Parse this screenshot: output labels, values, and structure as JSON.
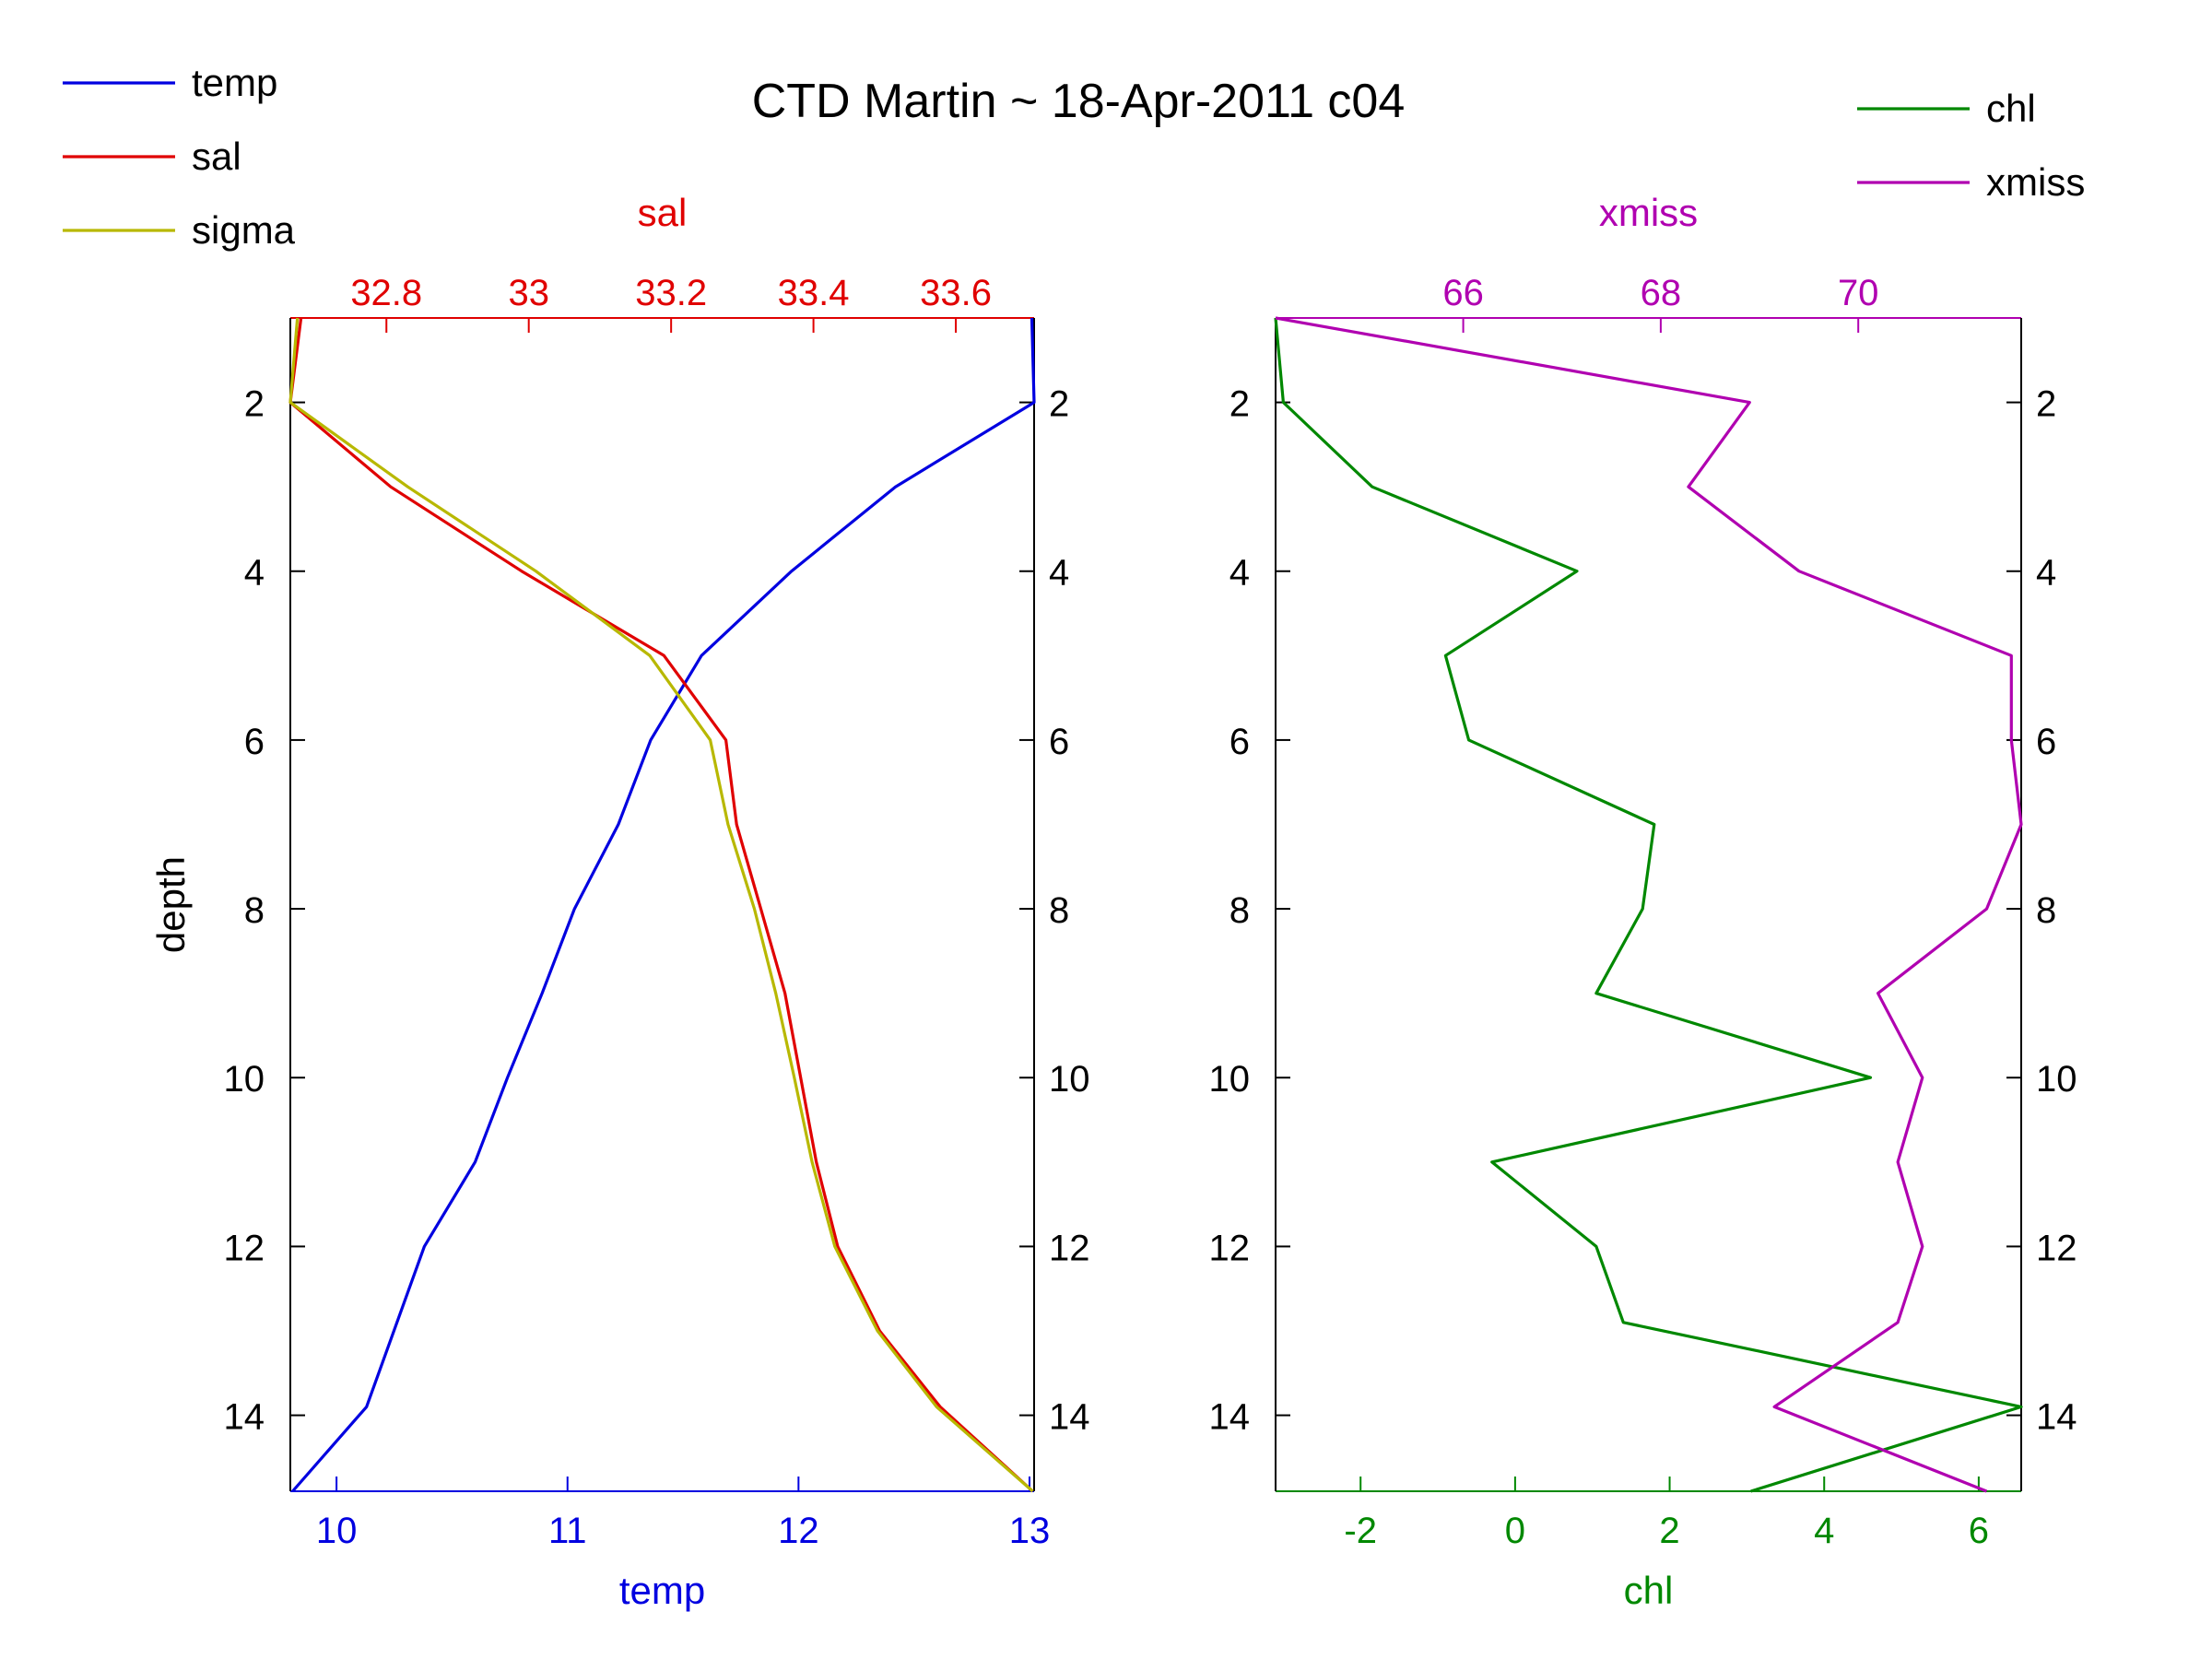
{
  "title": "CTD Martin ~ 18-Apr-2011 c04",
  "colors": {
    "temp": "#0000e0",
    "sal": "#e00000",
    "sigma": "#b8b800",
    "chl": "#008800",
    "xmiss": "#b000b0",
    "axis": "#000000"
  },
  "legend_left": [
    {
      "key": "temp",
      "label": "temp"
    },
    {
      "key": "sal",
      "label": "sal"
    },
    {
      "key": "sigma",
      "label": "sigma"
    }
  ],
  "legend_right": [
    {
      "key": "chl",
      "label": "chl"
    },
    {
      "key": "xmiss",
      "label": "xmiss"
    }
  ],
  "chart_data": [
    {
      "type": "line",
      "panel": "left",
      "ylabel": "depth",
      "ylim": [
        1,
        14.9
      ],
      "y_reversed": true,
      "yticks": [
        2,
        4,
        6,
        8,
        10,
        12,
        14
      ],
      "bottom_axis": {
        "label": "temp",
        "color_key": "temp",
        "xlim": [
          9.8,
          13.02
        ],
        "ticks": [
          10,
          11,
          12,
          13
        ]
      },
      "top_axis": {
        "label": "sal",
        "color_key": "sal",
        "xlim": [
          32.665,
          33.71
        ],
        "ticks": [
          32.8,
          33,
          33.2,
          33.4,
          33.6
        ]
      },
      "series": [
        {
          "name": "temp",
          "axis": "bottom",
          "color_key": "temp",
          "x": [
            13.01,
            13.02,
            12.42,
            11.97,
            11.58,
            11.36,
            11.22,
            11.03,
            10.89,
            10.74,
            10.6,
            10.38,
            10.13,
            9.81
          ],
          "y": [
            1,
            2,
            3,
            4,
            5,
            6,
            7,
            8,
            9,
            10,
            11,
            12,
            13.9,
            14.9
          ]
        },
        {
          "name": "sal",
          "axis": "top",
          "color_key": "sal",
          "x": [
            32.68,
            32.665,
            32.806,
            32.99,
            33.19,
            33.277,
            33.292,
            33.326,
            33.36,
            33.382,
            33.404,
            33.434,
            33.493,
            33.578,
            33.708
          ],
          "y": [
            1,
            2,
            3,
            4,
            5,
            6,
            7,
            8,
            9,
            10,
            11,
            12,
            13,
            13.9,
            14.9
          ]
        },
        {
          "name": "sigma",
          "axis": "top",
          "color_key": "sigma",
          "x": [
            32.675,
            32.665,
            32.83,
            33.01,
            33.17,
            33.255,
            33.28,
            33.317,
            33.347,
            33.373,
            33.398,
            33.43,
            33.49,
            33.573,
            33.708
          ],
          "y": [
            1,
            2,
            3,
            4,
            5,
            6,
            7,
            8,
            9,
            10,
            11,
            12,
            13,
            13.9,
            14.9
          ]
        }
      ]
    },
    {
      "type": "line",
      "panel": "right",
      "ylim": [
        1,
        14.9
      ],
      "y_reversed": true,
      "yticks": [
        2,
        4,
        6,
        8,
        10,
        12,
        14
      ],
      "bottom_axis": {
        "label": "chl",
        "color_key": "chl",
        "xlim": [
          -3.1,
          6.55
        ],
        "ticks": [
          -2,
          0,
          2,
          4,
          6
        ]
      },
      "top_axis": {
        "label": "xmiss",
        "color_key": "xmiss",
        "xlim": [
          64.1,
          71.65
        ],
        "ticks": [
          66,
          68,
          70
        ]
      },
      "series": [
        {
          "name": "chl",
          "axis": "bottom",
          "color_key": "chl",
          "x": [
            -3.1,
            -3.0,
            -1.85,
            0.8,
            -0.9,
            -0.6,
            1.8,
            1.65,
            1.05,
            4.6,
            -0.3,
            1.05,
            1.4,
            6.55,
            3.05
          ],
          "y": [
            1,
            2,
            3,
            4,
            5,
            6,
            7,
            8,
            9,
            10,
            11,
            12,
            12.9,
            13.9,
            14.9
          ]
        },
        {
          "name": "xmiss",
          "axis": "top",
          "color_key": "xmiss",
          "x": [
            64.1,
            68.9,
            68.28,
            69.4,
            71.55,
            71.55,
            71.65,
            71.3,
            70.2,
            70.65,
            70.4,
            70.65,
            70.4,
            69.15,
            71.3
          ],
          "y": [
            1,
            2,
            3,
            4,
            5,
            6,
            7,
            8,
            9,
            10,
            11,
            12,
            12.9,
            13.9,
            14.9
          ]
        }
      ]
    }
  ]
}
